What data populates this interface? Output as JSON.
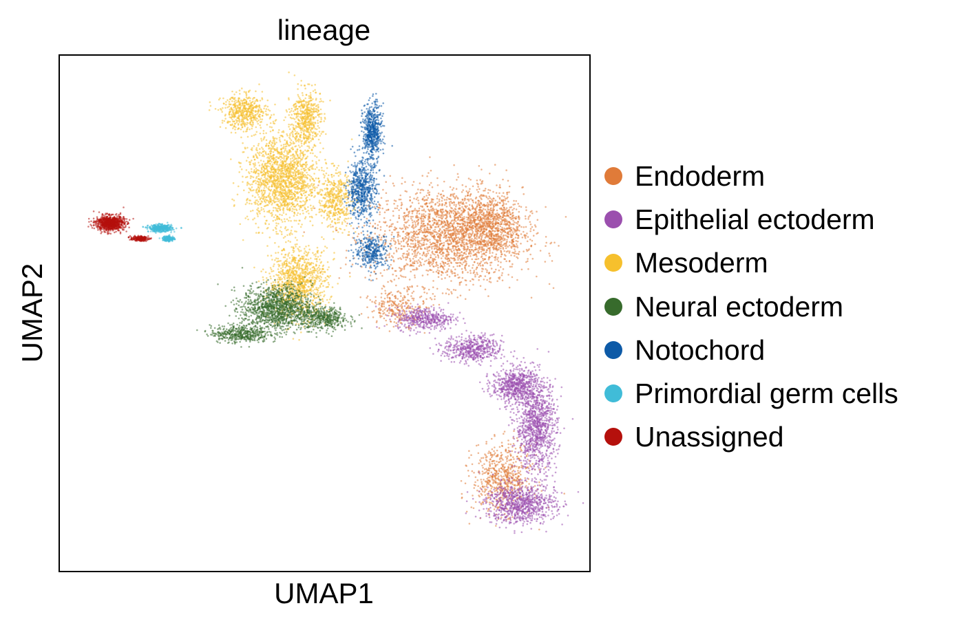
{
  "chart_data": {
    "type": "scatter",
    "title": "lineage",
    "xlabel": "UMAP1",
    "ylabel": "UMAP2",
    "grid": false,
    "legend_position": "right",
    "xlim": [
      0,
      100
    ],
    "ylim": [
      0,
      100
    ],
    "series": [
      {
        "name": "Endoderm",
        "color": "#e07b39",
        "clusters": [
          {
            "cx": 73,
            "cy": 65,
            "rx": 13,
            "ry": 8.5,
            "weight": 5
          },
          {
            "cx": 81,
            "cy": 67,
            "rx": 6,
            "ry": 6,
            "weight": 2
          },
          {
            "cx": 83.5,
            "cy": 18,
            "rx": 5,
            "ry": 6,
            "weight": 1.5
          },
          {
            "cx": 64,
            "cy": 51,
            "rx": 5,
            "ry": 3,
            "weight": 0.6
          }
        ]
      },
      {
        "name": "Epithelial ectoderm",
        "color": "#9b4fae",
        "clusters": [
          {
            "cx": 90,
            "cy": 28,
            "rx": 3.5,
            "ry": 8,
            "weight": 2.5
          },
          {
            "cx": 87,
            "cy": 13,
            "rx": 6,
            "ry": 3.5,
            "weight": 2
          },
          {
            "cx": 86,
            "cy": 36,
            "rx": 4,
            "ry": 3,
            "weight": 1.5
          },
          {
            "cx": 78,
            "cy": 43,
            "rx": 5,
            "ry": 2.4,
            "weight": 1.2
          },
          {
            "cx": 69,
            "cy": 49,
            "rx": 5,
            "ry": 2,
            "weight": 1
          }
        ]
      },
      {
        "name": "Mesoderm",
        "color": "#f6c02d",
        "clusters": [
          {
            "cx": 42,
            "cy": 76,
            "rx": 6,
            "ry": 8,
            "weight": 4
          },
          {
            "cx": 45,
            "cy": 56,
            "rx": 5,
            "ry": 6,
            "weight": 2.5
          },
          {
            "cx": 35,
            "cy": 89,
            "rx": 4,
            "ry": 3,
            "weight": 1.2
          },
          {
            "cx": 46.5,
            "cy": 88,
            "rx": 2.5,
            "ry": 5,
            "weight": 1.2
          },
          {
            "cx": 52,
            "cy": 72,
            "rx": 3,
            "ry": 5,
            "weight": 1
          }
        ]
      },
      {
        "name": "Neural ectoderm",
        "color": "#376b2c",
        "clusters": [
          {
            "cx": 41,
            "cy": 51,
            "rx": 6,
            "ry": 4,
            "weight": 3
          },
          {
            "cx": 34,
            "cy": 46,
            "rx": 5,
            "ry": 1.5,
            "weight": 1
          },
          {
            "cx": 50,
            "cy": 49,
            "rx": 4,
            "ry": 2,
            "weight": 1
          }
        ]
      },
      {
        "name": "Notochord",
        "color": "#0d5aa7",
        "clusters": [
          {
            "cx": 59,
            "cy": 85,
            "rx": 1.6,
            "ry": 5,
            "weight": 1.4
          },
          {
            "cx": 57,
            "cy": 74,
            "rx": 2.5,
            "ry": 5,
            "weight": 1.4
          },
          {
            "cx": 59,
            "cy": 62,
            "rx": 3,
            "ry": 3,
            "weight": 0.8
          }
        ]
      },
      {
        "name": "Primordial germ cells",
        "color": "#40bcd8",
        "clusters": [
          {
            "cx": 19,
            "cy": 66.5,
            "rx": 2,
            "ry": 0.6,
            "weight": 1
          },
          {
            "cx": 20.5,
            "cy": 64.5,
            "rx": 1,
            "ry": 0.5,
            "weight": 0.4
          }
        ]
      },
      {
        "name": "Unassigned",
        "color": "#b5100c",
        "clusters": [
          {
            "cx": 9.5,
            "cy": 67.5,
            "rx": 2.4,
            "ry": 1.3,
            "weight": 2
          },
          {
            "cx": 15,
            "cy": 64.5,
            "rx": 1.5,
            "ry": 0.4,
            "weight": 0.5
          }
        ]
      }
    ]
  }
}
